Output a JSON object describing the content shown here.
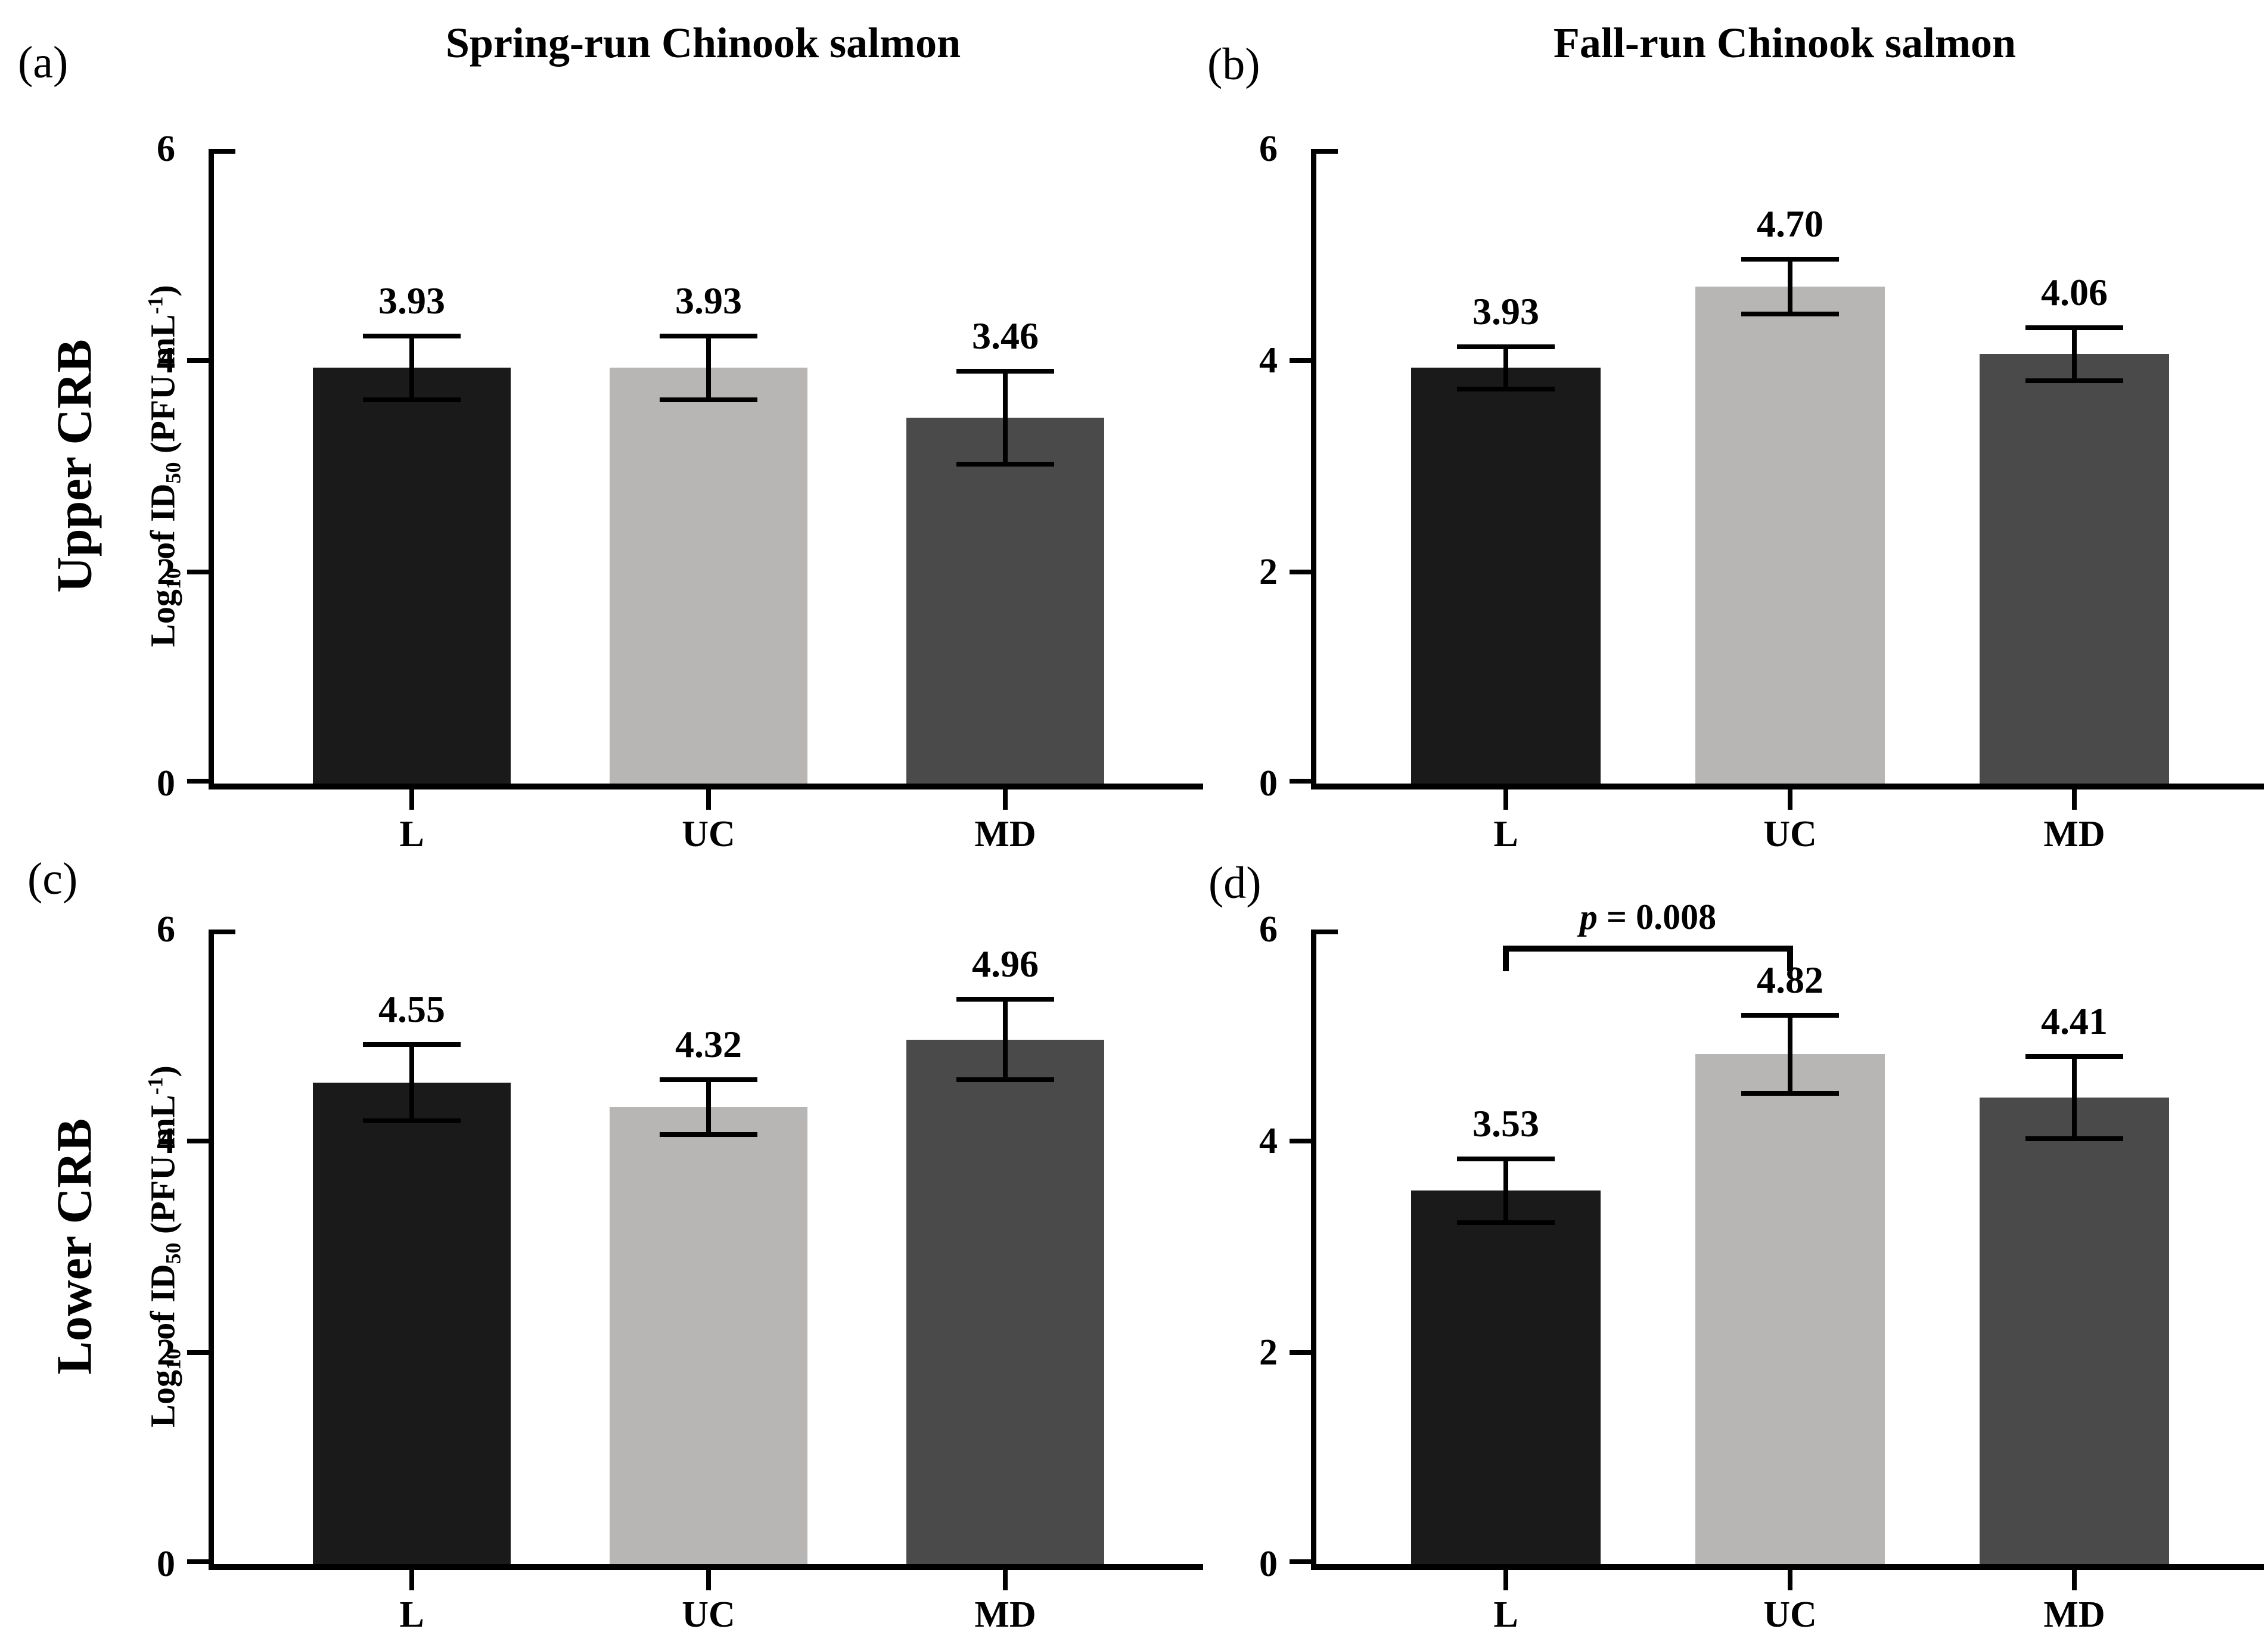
{
  "figure": {
    "column_titles": [
      "Spring-run Chinook salmon",
      "Fall-run Chinook salmon"
    ],
    "row_labels": [
      "Upper CRB",
      "Lower CRB"
    ],
    "panel_letters": [
      "(a)",
      "(b)",
      "(c)",
      "(d)"
    ],
    "y_axis_title_plain": "Log10 of ID50 (PFU mL-1)",
    "y_axis_title_segments": [
      {
        "text": "Log"
      },
      {
        "text": "10",
        "style": "sub"
      },
      {
        "text": " of ID"
      },
      {
        "text": "50",
        "style": "sub"
      },
      {
        "text": " (PFU mL"
      },
      {
        "text": "-1",
        "style": "sup"
      },
      {
        "text": ")"
      }
    ],
    "colors": {
      "bar_black": "#1a1a1a",
      "bar_light_gray": "#b7b6b4",
      "bar_dark_gray": "#4b4a4a",
      "axis": "#000000",
      "background": "#ffffff"
    }
  },
  "chart_data": [
    {
      "panel": "a",
      "type": "bar",
      "row": "Upper CRB",
      "column": "Spring-run Chinook salmon",
      "categories": [
        "L",
        "UC",
        "MD"
      ],
      "values": [
        3.93,
        3.93,
        3.46
      ],
      "value_labels": [
        "3.93",
        "3.93",
        "3.46"
      ],
      "errors": [
        0.3,
        0.3,
        0.44
      ],
      "bar_color_keys": [
        "bar_black",
        "bar_light_gray",
        "bar_dark_gray"
      ],
      "ylim": [
        0,
        6
      ],
      "yticks": [
        0,
        2,
        4,
        6
      ],
      "grid": false
    },
    {
      "panel": "b",
      "type": "bar",
      "row": "Upper CRB",
      "column": "Fall-run Chinook salmon",
      "categories": [
        "L",
        "UC",
        "MD"
      ],
      "values": [
        3.93,
        4.7,
        4.06
      ],
      "value_labels": [
        "3.93",
        "4.70",
        "4.06"
      ],
      "errors": [
        0.2,
        0.26,
        0.25
      ],
      "bar_color_keys": [
        "bar_black",
        "bar_light_gray",
        "bar_dark_gray"
      ],
      "ylim": [
        0,
        6
      ],
      "yticks": [
        0,
        2,
        4,
        6
      ],
      "grid": false
    },
    {
      "panel": "c",
      "type": "bar",
      "row": "Lower CRB",
      "column": "Spring-run Chinook salmon",
      "categories": [
        "L",
        "UC",
        "MD"
      ],
      "values": [
        4.55,
        4.32,
        4.96
      ],
      "value_labels": [
        "4.55",
        "4.32",
        "4.96"
      ],
      "errors": [
        0.36,
        0.26,
        0.38
      ],
      "bar_color_keys": [
        "bar_black",
        "bar_light_gray",
        "bar_dark_gray"
      ],
      "ylim": [
        0,
        6
      ],
      "yticks": [
        0,
        2,
        4,
        6
      ],
      "grid": false
    },
    {
      "panel": "d",
      "type": "bar",
      "row": "Lower CRB",
      "column": "Fall-run Chinook salmon",
      "categories": [
        "L",
        "UC",
        "MD"
      ],
      "values": [
        3.53,
        4.82,
        4.41
      ],
      "value_labels": [
        "3.53",
        "4.82",
        "4.41"
      ],
      "errors": [
        0.3,
        0.37,
        0.39
      ],
      "bar_color_keys": [
        "bar_black",
        "bar_light_gray",
        "bar_dark_gray"
      ],
      "ylim": [
        0,
        6
      ],
      "yticks": [
        0,
        2,
        4,
        6
      ],
      "grid": false,
      "annotation": {
        "type": "significance-bracket",
        "between": [
          "L",
          "UC"
        ],
        "y": 5.82,
        "label_plain": "p = 0.008",
        "label_segments": [
          {
            "text": "p",
            "style": "italic"
          },
          {
            "text": " = 0.008"
          }
        ]
      }
    }
  ]
}
